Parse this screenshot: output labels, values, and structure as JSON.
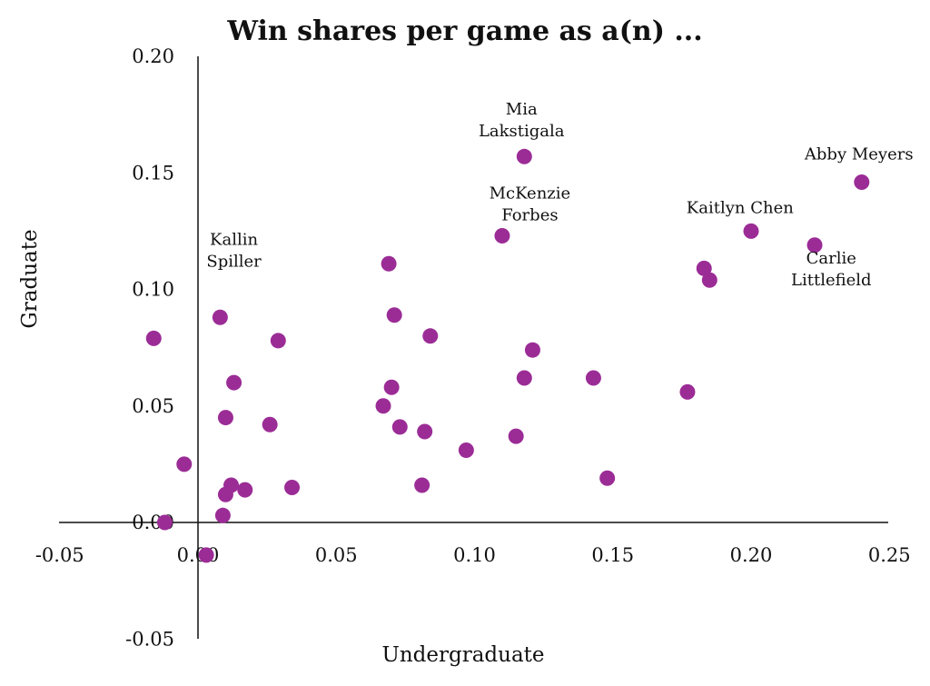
{
  "chart_data": {
    "type": "scatter",
    "title": "Win shares per game as a(n) ...",
    "xlabel": "Undergraduate",
    "ylabel": "Graduate",
    "xlim": [
      -0.05,
      0.25
    ],
    "ylim": [
      -0.05,
      0.2
    ],
    "xticks": [
      "-0.05",
      "0.00",
      "0.05",
      "0.10",
      "0.15",
      "0.20",
      "0.25"
    ],
    "yticks": [
      "-0.05",
      "0.00",
      "0.05",
      "0.10",
      "0.15",
      "0.20"
    ],
    "grid": false,
    "point_color": "#9B2C96",
    "points": [
      {
        "x": -0.016,
        "y": 0.079
      },
      {
        "x": -0.012,
        "y": 0.0
      },
      {
        "x": -0.005,
        "y": 0.025
      },
      {
        "x": 0.003,
        "y": -0.014
      },
      {
        "x": 0.008,
        "y": 0.088
      },
      {
        "x": 0.009,
        "y": 0.003
      },
      {
        "x": 0.01,
        "y": 0.045
      },
      {
        "x": 0.01,
        "y": 0.012
      },
      {
        "x": 0.012,
        "y": 0.016
      },
      {
        "x": 0.013,
        "y": 0.06
      },
      {
        "x": 0.017,
        "y": 0.014
      },
      {
        "x": 0.026,
        "y": 0.042
      },
      {
        "x": 0.029,
        "y": 0.078
      },
      {
        "x": 0.034,
        "y": 0.015
      },
      {
        "x": 0.067,
        "y": 0.05
      },
      {
        "x": 0.069,
        "y": 0.111
      },
      {
        "x": 0.07,
        "y": 0.058
      },
      {
        "x": 0.071,
        "y": 0.089
      },
      {
        "x": 0.073,
        "y": 0.041
      },
      {
        "x": 0.081,
        "y": 0.016
      },
      {
        "x": 0.082,
        "y": 0.039
      },
      {
        "x": 0.084,
        "y": 0.08
      },
      {
        "x": 0.097,
        "y": 0.031
      },
      {
        "x": 0.11,
        "y": 0.123
      },
      {
        "x": 0.115,
        "y": 0.037
      },
      {
        "x": 0.118,
        "y": 0.157
      },
      {
        "x": 0.118,
        "y": 0.062
      },
      {
        "x": 0.121,
        "y": 0.074
      },
      {
        "x": 0.143,
        "y": 0.062
      },
      {
        "x": 0.148,
        "y": 0.019
      },
      {
        "x": 0.177,
        "y": 0.056
      },
      {
        "x": 0.183,
        "y": 0.109
      },
      {
        "x": 0.185,
        "y": 0.104
      },
      {
        "x": 0.2,
        "y": 0.125
      },
      {
        "x": 0.223,
        "y": 0.119
      },
      {
        "x": 0.24,
        "y": 0.146
      }
    ],
    "annotations": [
      {
        "lines": [
          "Mia",
          "Lakstigala"
        ],
        "x": 0.117,
        "y": 0.168
      },
      {
        "lines": [
          "Abby Meyers"
        ],
        "x": 0.239,
        "y": 0.158
      },
      {
        "lines": [
          "McKenzie",
          "Forbes"
        ],
        "x": 0.12,
        "y": 0.132
      },
      {
        "lines": [
          "Kaitlyn Chen"
        ],
        "x": 0.196,
        "y": 0.135
      },
      {
        "lines": [
          "Kallin",
          "Spiller"
        ],
        "x": 0.013,
        "y": 0.112
      },
      {
        "lines": [
          "Carlie",
          "Littlefield"
        ],
        "x": 0.229,
        "y": 0.104
      }
    ]
  }
}
